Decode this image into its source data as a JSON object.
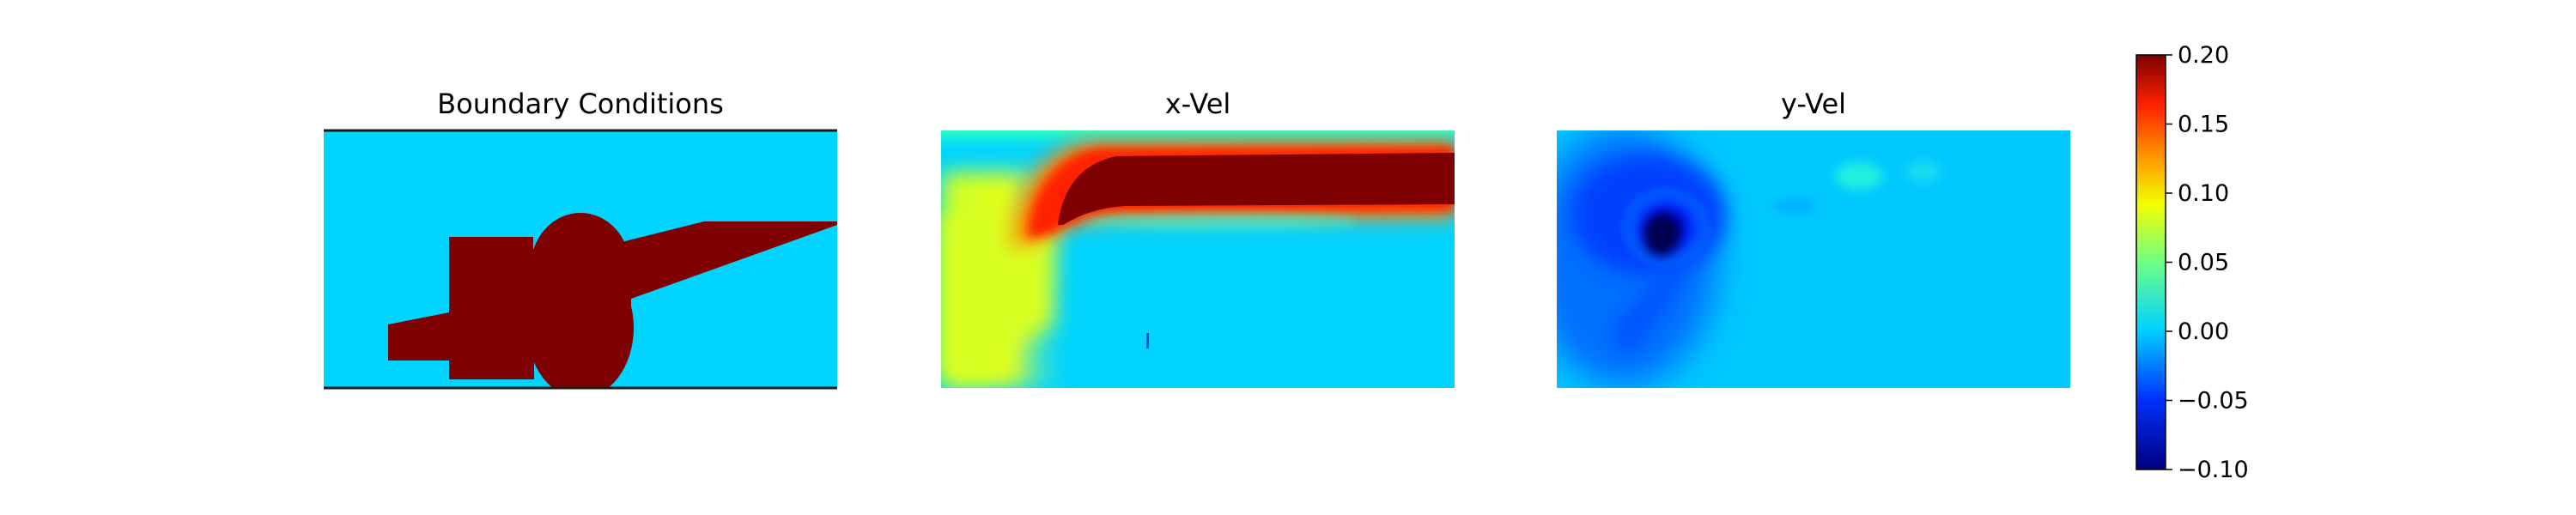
{
  "chart_data": {
    "type": "heatmap",
    "colormap": "jet",
    "panels": [
      {
        "title": "Boundary Conditions",
        "description_colors": {
          "fluid": "#00d4ff",
          "solid": "#7f0000"
        }
      },
      {
        "title": "x-Vel"
      },
      {
        "title": "y-Vel"
      }
    ],
    "colorbar": {
      "vmin": -0.1,
      "vmax": 0.2,
      "ticks": [
        0.2,
        0.15,
        0.1,
        0.05,
        0.0,
        -0.05,
        -0.1
      ],
      "tick_labels": [
        "0.20",
        "0.15",
        "0.10",
        "0.05",
        "0.00",
        "−0.05",
        "−0.10"
      ]
    }
  }
}
